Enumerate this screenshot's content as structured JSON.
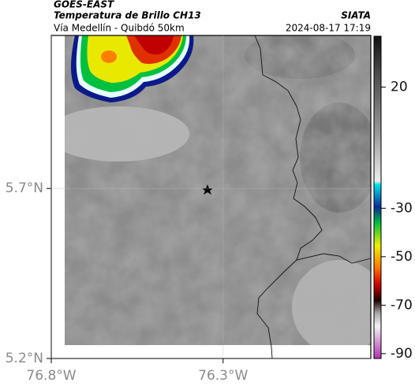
{
  "header": {
    "source": "GOES-EAST",
    "title": "Temperatura de Brillo CH13",
    "organization": "SIATA",
    "subtitle": "Vía Medellín - Quibdó 50km",
    "timestamp": "2024-08-17 17:19"
  },
  "map": {
    "latlim": [
      5.2,
      6.15
    ],
    "lonlim": [
      -76.8,
      -75.87
    ],
    "latticks": [
      {
        "value": 5.7,
        "label": "5.7°N"
      },
      {
        "value": 5.2,
        "label": "5.2°N"
      }
    ],
    "lonticks": [
      {
        "value": -76.8,
        "label": "76.8°W"
      },
      {
        "value": -76.3,
        "label": "76.3°W"
      }
    ]
  },
  "colorbar": {
    "lim": [
      -92,
      41
    ],
    "ticks": [
      20,
      -30,
      -50,
      -70,
      -90
    ]
  }
}
